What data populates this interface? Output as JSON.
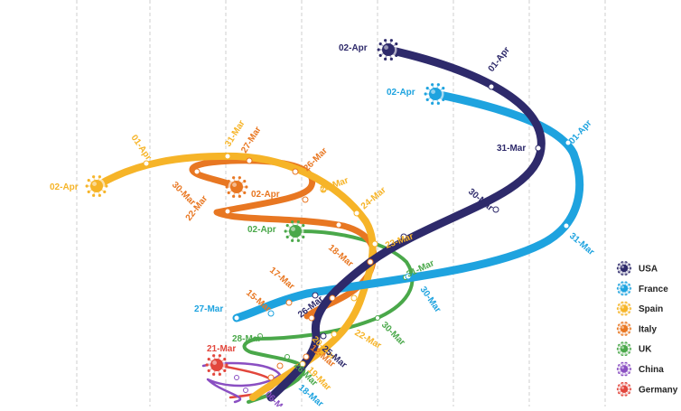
{
  "chart_data": {
    "type": "line",
    "title": "",
    "xlabel": "",
    "ylabel": "",
    "grid": "vertical dashed lines",
    "legend_position": "right",
    "series": [
      {
        "name": "USA",
        "color": "#2e2a6b",
        "marker_label": "02-Apr",
        "labels": [
          "01-Apr",
          "31-Mar",
          "30-Mar",
          "26-Mar",
          "25-Mar"
        ]
      },
      {
        "name": "France",
        "color": "#1ea3df",
        "marker_label": "02-Apr",
        "labels": [
          "01-Apr",
          "31-Mar",
          "30-Mar",
          "27-Mar",
          "18-Mar"
        ]
      },
      {
        "name": "Spain",
        "color": "#f6b428",
        "marker_label": "02-Apr",
        "labels": [
          "01-Apr",
          "31-Mar",
          "25-Mar",
          "24-Mar",
          "23-Mar",
          "22-Mar",
          "20-Mar",
          "19-Mar"
        ]
      },
      {
        "name": "Italy",
        "color": "#e87722",
        "marker_label": "02-Apr",
        "labels": [
          "27-Mar",
          "26-Mar",
          "30-Mar",
          "22-Mar",
          "18-Mar",
          "17-Mar",
          "15-Mar",
          "12-Mar"
        ]
      },
      {
        "name": "UK",
        "color": "#4aa84a",
        "marker_label": "02-Apr",
        "labels": [
          "31-Mar",
          "30-Mar",
          "28-Mar",
          "26-Mar"
        ]
      },
      {
        "name": "China",
        "color": "#8a4fc2",
        "marker_label": "",
        "labels": [
          "06-Mar"
        ]
      },
      {
        "name": "Germany",
        "color": "#e2463c",
        "marker_label": "21-Mar",
        "labels": []
      }
    ]
  }
}
